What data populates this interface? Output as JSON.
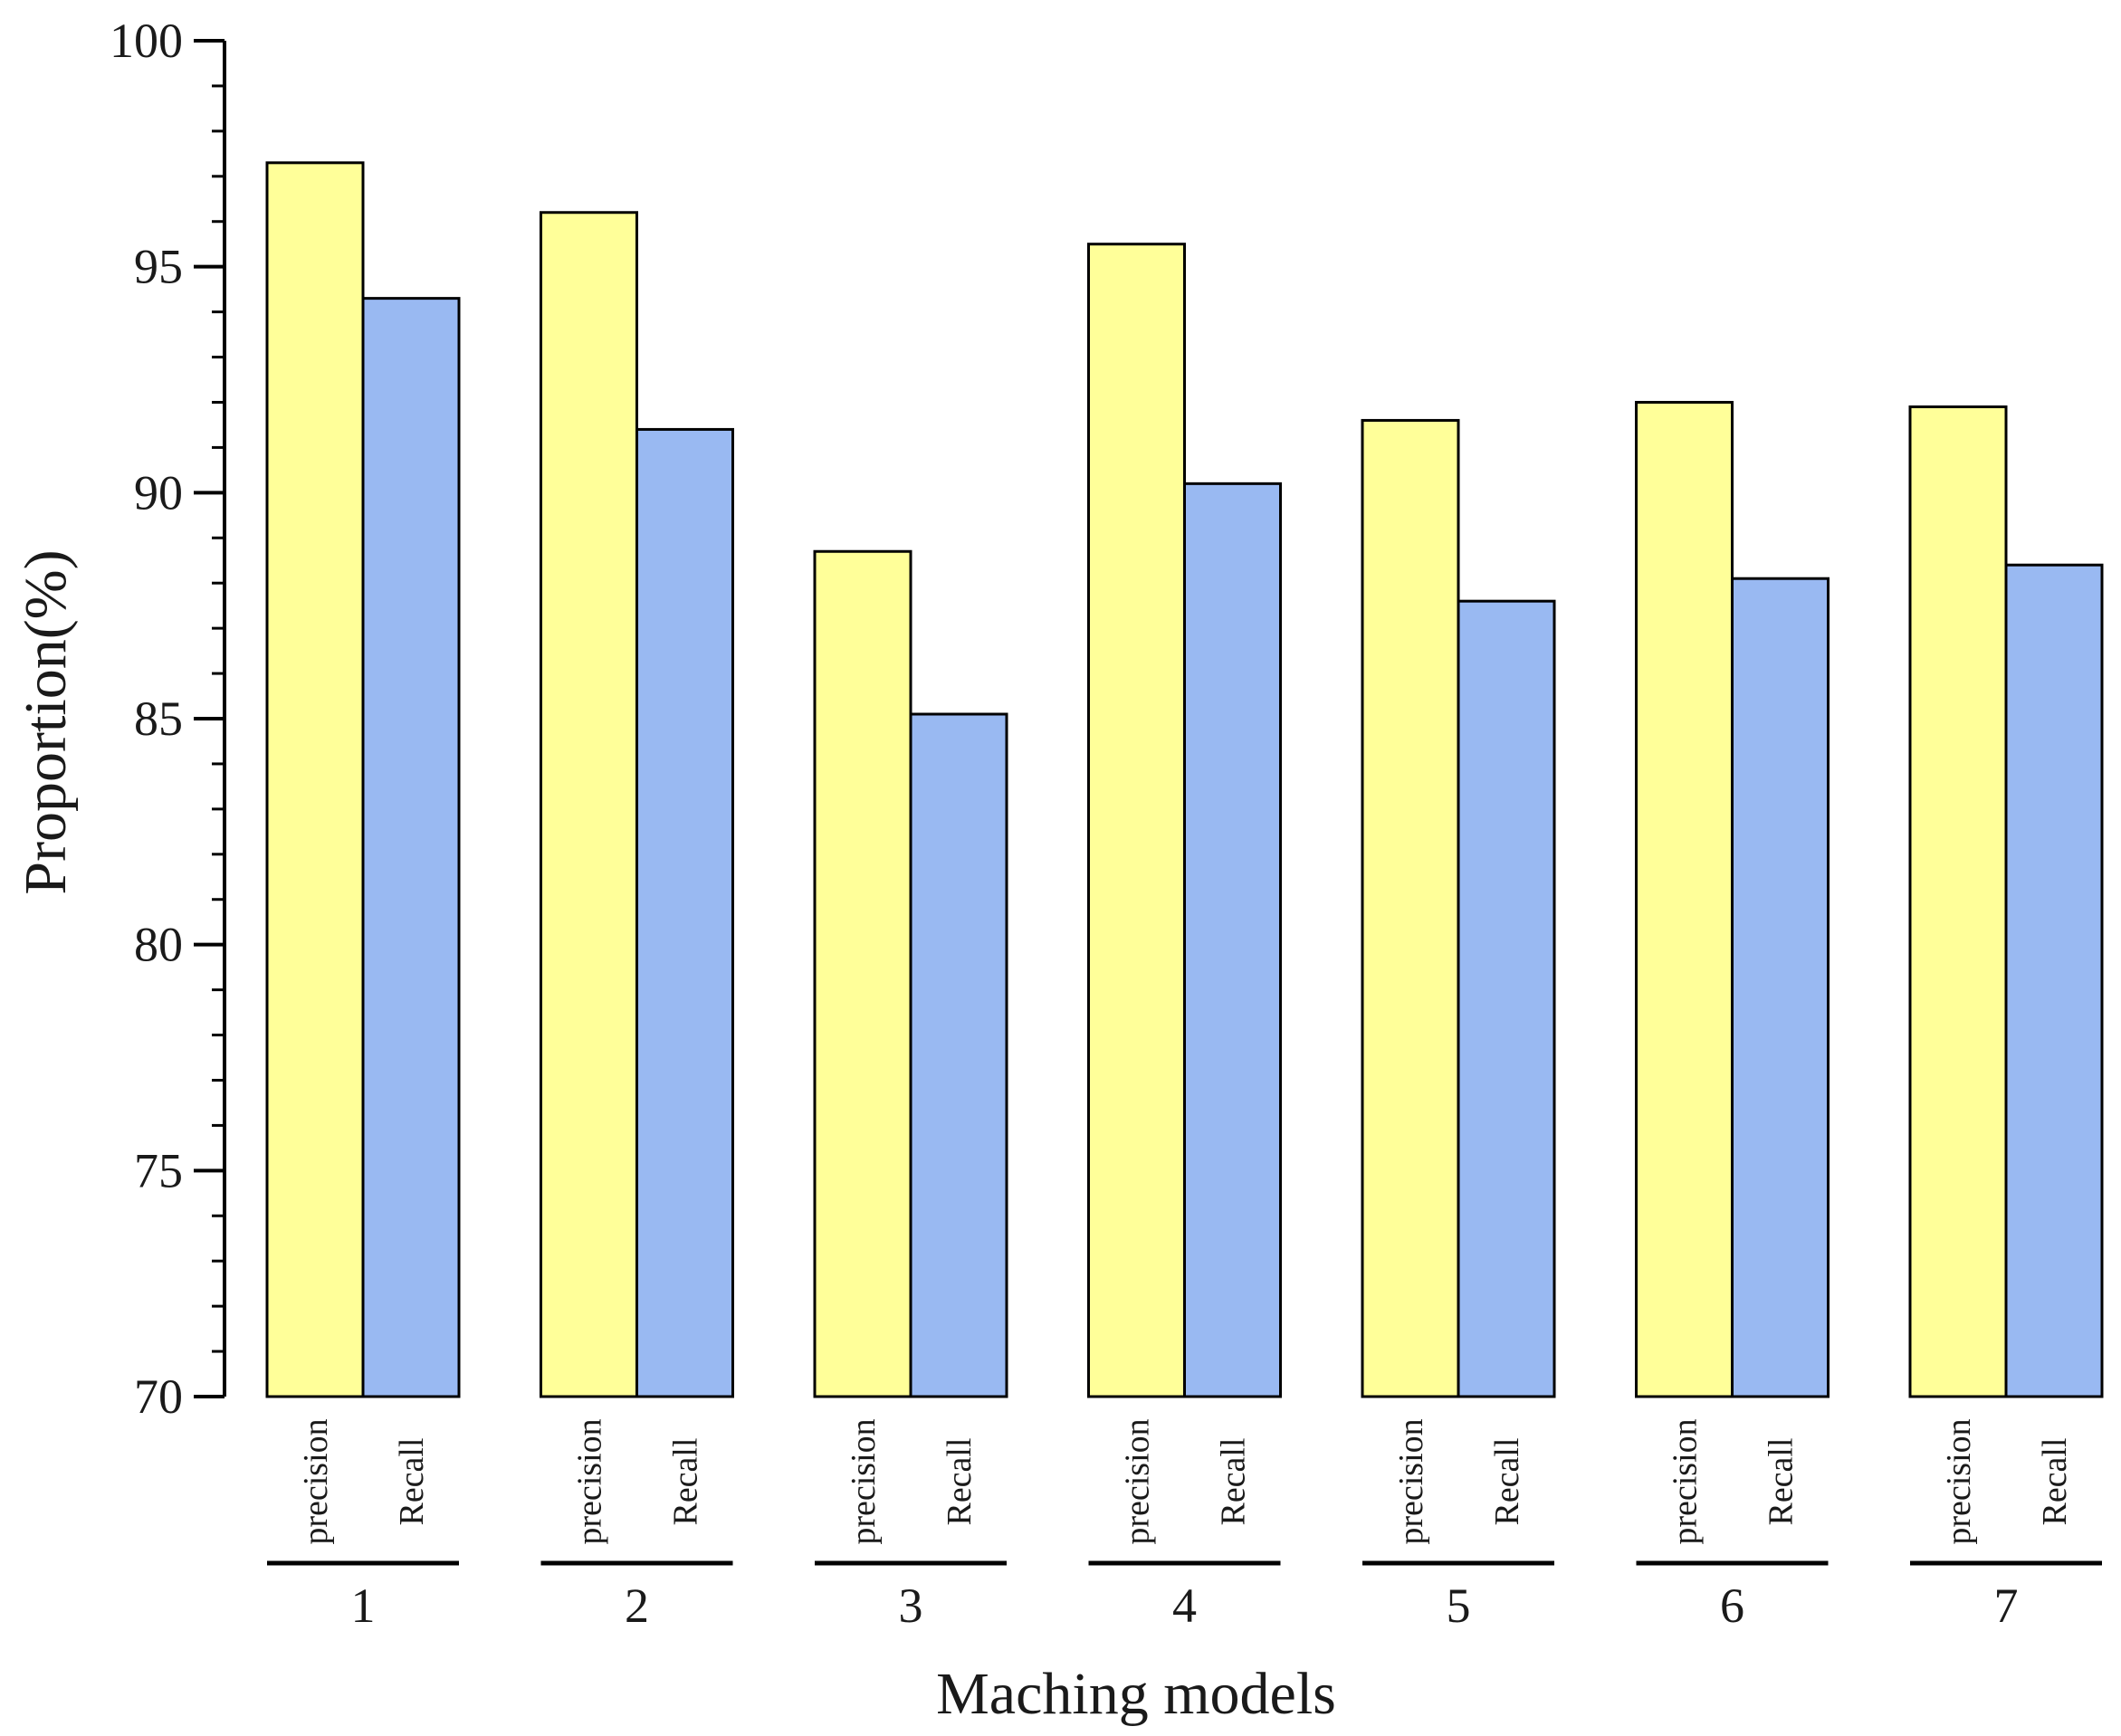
{
  "chart_data": {
    "type": "bar",
    "title": "",
    "xlabel": "Maching models",
    "ylabel": "Proportion(%)",
    "ylim": [
      70,
      100
    ],
    "yticks": [
      "70",
      "75",
      "80",
      "85",
      "90",
      "95",
      "100"
    ],
    "categories": [
      "1",
      "2",
      "3",
      "4",
      "5",
      "6",
      "7"
    ],
    "series": [
      {
        "name": "precision",
        "color": "#ffff99",
        "values": [
          97.3,
          96.2,
          88.7,
          95.5,
          91.6,
          92.0,
          91.9
        ]
      },
      {
        "name": "Recall",
        "color": "#99b9f2",
        "values": [
          94.3,
          91.4,
          85.1,
          90.2,
          87.6,
          88.1,
          88.4
        ]
      }
    ],
    "grid": false,
    "legend": "none"
  }
}
